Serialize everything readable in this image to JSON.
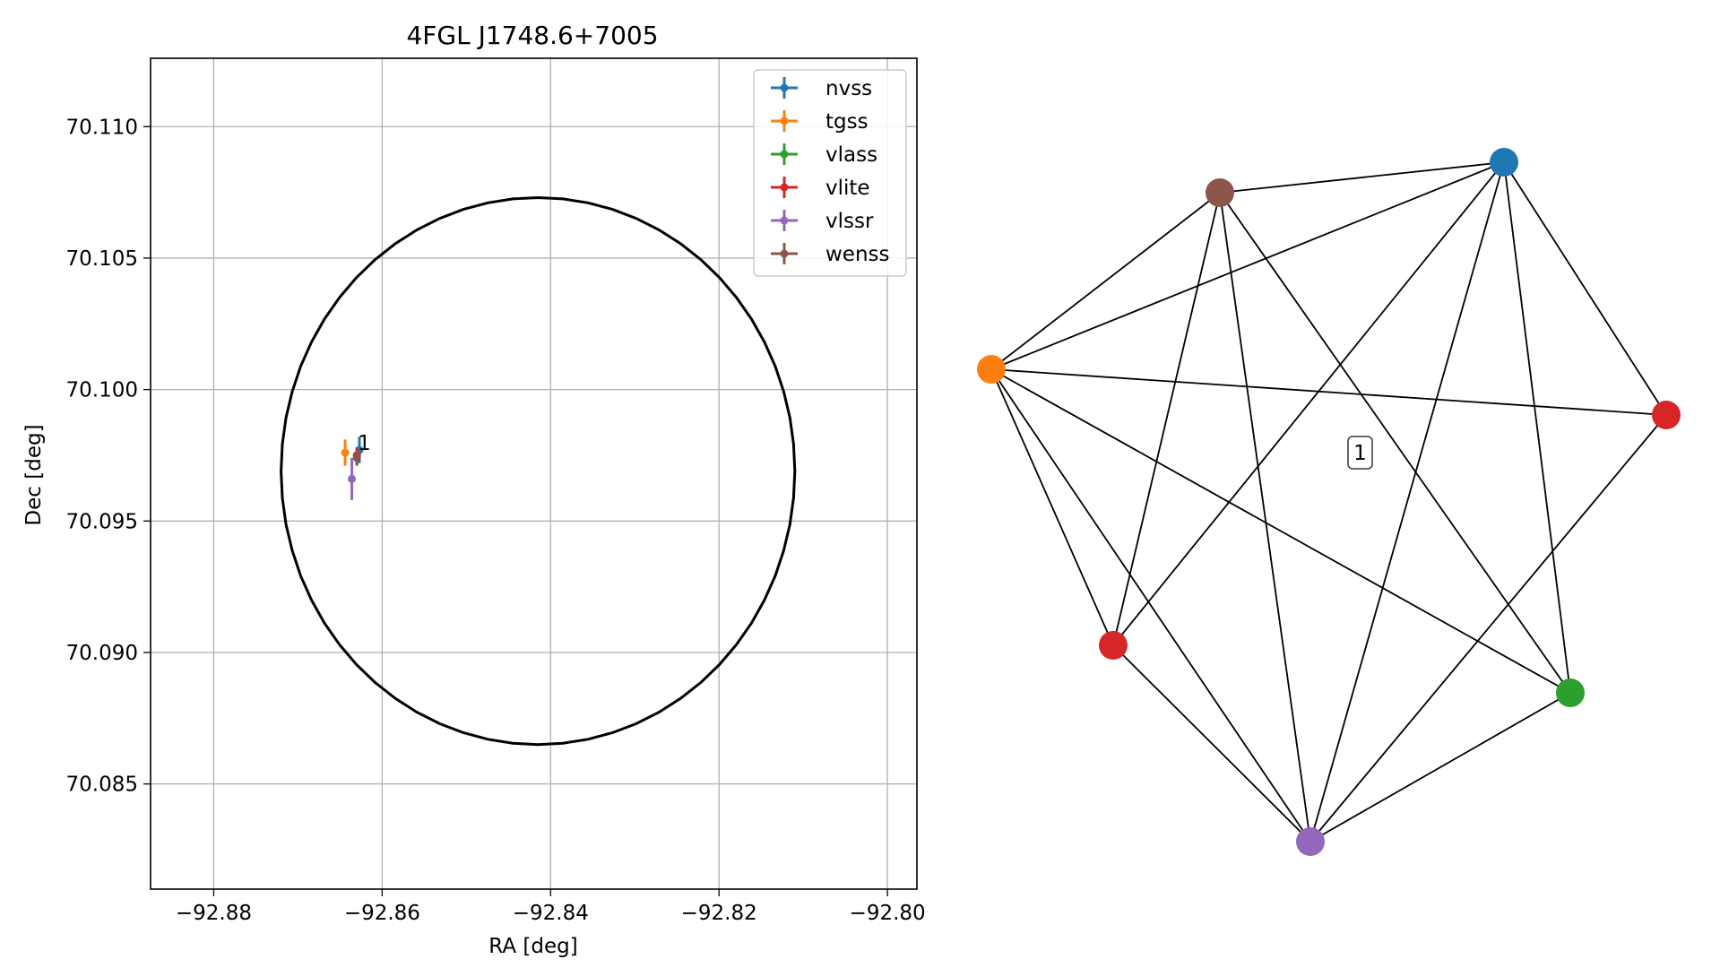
{
  "chart_data": [
    {
      "type": "scatter",
      "title": "4FGL J1748.6+7005",
      "xlabel": "RA [deg]",
      "ylabel": "Dec [deg]",
      "xlim": [
        -92.8875,
        -92.7965
      ],
      "ylim": [
        70.081,
        70.1126
      ],
      "xticks": [
        -92.88,
        -92.86,
        -92.84,
        -92.82,
        -92.8
      ],
      "xtick_labels": [
        "−92.88",
        "−92.86",
        "−92.84",
        "−92.82",
        "−92.80"
      ],
      "yticks": [
        70.085,
        70.09,
        70.095,
        70.1,
        70.105,
        70.11
      ],
      "ytick_labels": [
        "70.085",
        "70.090",
        "70.095",
        "70.100",
        "70.105",
        "70.110"
      ],
      "grid": true,
      "legend_position": "top-right",
      "circle": {
        "center": [
          -92.8415,
          70.0969
        ],
        "ra_radius": 0.0305,
        "dec_radius": 0.0104,
        "color": "#000000"
      },
      "series": [
        {
          "name": "nvss",
          "color": "#1f77b4",
          "x": -92.8627,
          "y": 70.0977,
          "xerr": 0.0003,
          "yerr": 0.0005
        },
        {
          "name": "tgss",
          "color": "#ff7f0e",
          "x": -92.8644,
          "y": 70.0976,
          "xerr": 0.0002,
          "yerr": 0.0005
        },
        {
          "name": "vlass",
          "color": "#2ca02c",
          "x": -92.863,
          "y": 70.0975,
          "xerr": 0.0001,
          "yerr": 0.0001
        },
        {
          "name": "vlite",
          "color": "#d62728",
          "x": -92.863,
          "y": 70.0975,
          "xerr": 0.0003,
          "yerr": 0.0003
        },
        {
          "name": "vlssr",
          "color": "#9467bd",
          "x": -92.8636,
          "y": 70.0966,
          "xerr": 0.0004,
          "yerr": 0.0008
        },
        {
          "name": "wenss",
          "color": "#8c564b",
          "x": -92.863,
          "y": 70.0974,
          "xerr": 0.0002,
          "yerr": 0.0003
        }
      ],
      "annotations": [
        {
          "text": "1",
          "x": -92.8629,
          "y": 70.0978
        }
      ]
    },
    {
      "type": "graph",
      "cluster_label": "1",
      "nodes": [
        {
          "id": "nvss",
          "color": "#1f77b4"
        },
        {
          "id": "tgss",
          "color": "#ff7f0e"
        },
        {
          "id": "vlass",
          "color": "#2ca02c"
        },
        {
          "id": "vlite_a",
          "color": "#d62728"
        },
        {
          "id": "vlssr",
          "color": "#9467bd"
        },
        {
          "id": "wenss",
          "color": "#8c564b"
        },
        {
          "id": "vlite_b",
          "color": "#d62728"
        }
      ],
      "edges": [
        [
          "wenss",
          "nvss"
        ],
        [
          "wenss",
          "tgss"
        ],
        [
          "wenss",
          "vlite_b"
        ],
        [
          "wenss",
          "vlssr"
        ],
        [
          "wenss",
          "vlass"
        ],
        [
          "nvss",
          "tgss"
        ],
        [
          "nvss",
          "vlite_a"
        ],
        [
          "nvss",
          "vlite_b"
        ],
        [
          "nvss",
          "vlssr"
        ],
        [
          "nvss",
          "vlass"
        ],
        [
          "tgss",
          "vlite_a"
        ],
        [
          "tgss",
          "vlite_b"
        ],
        [
          "tgss",
          "vlssr"
        ],
        [
          "tgss",
          "vlass"
        ],
        [
          "vlite_a",
          "vlssr"
        ],
        [
          "vlite_b",
          "vlssr"
        ],
        [
          "vlssr",
          "vlass"
        ]
      ]
    }
  ]
}
